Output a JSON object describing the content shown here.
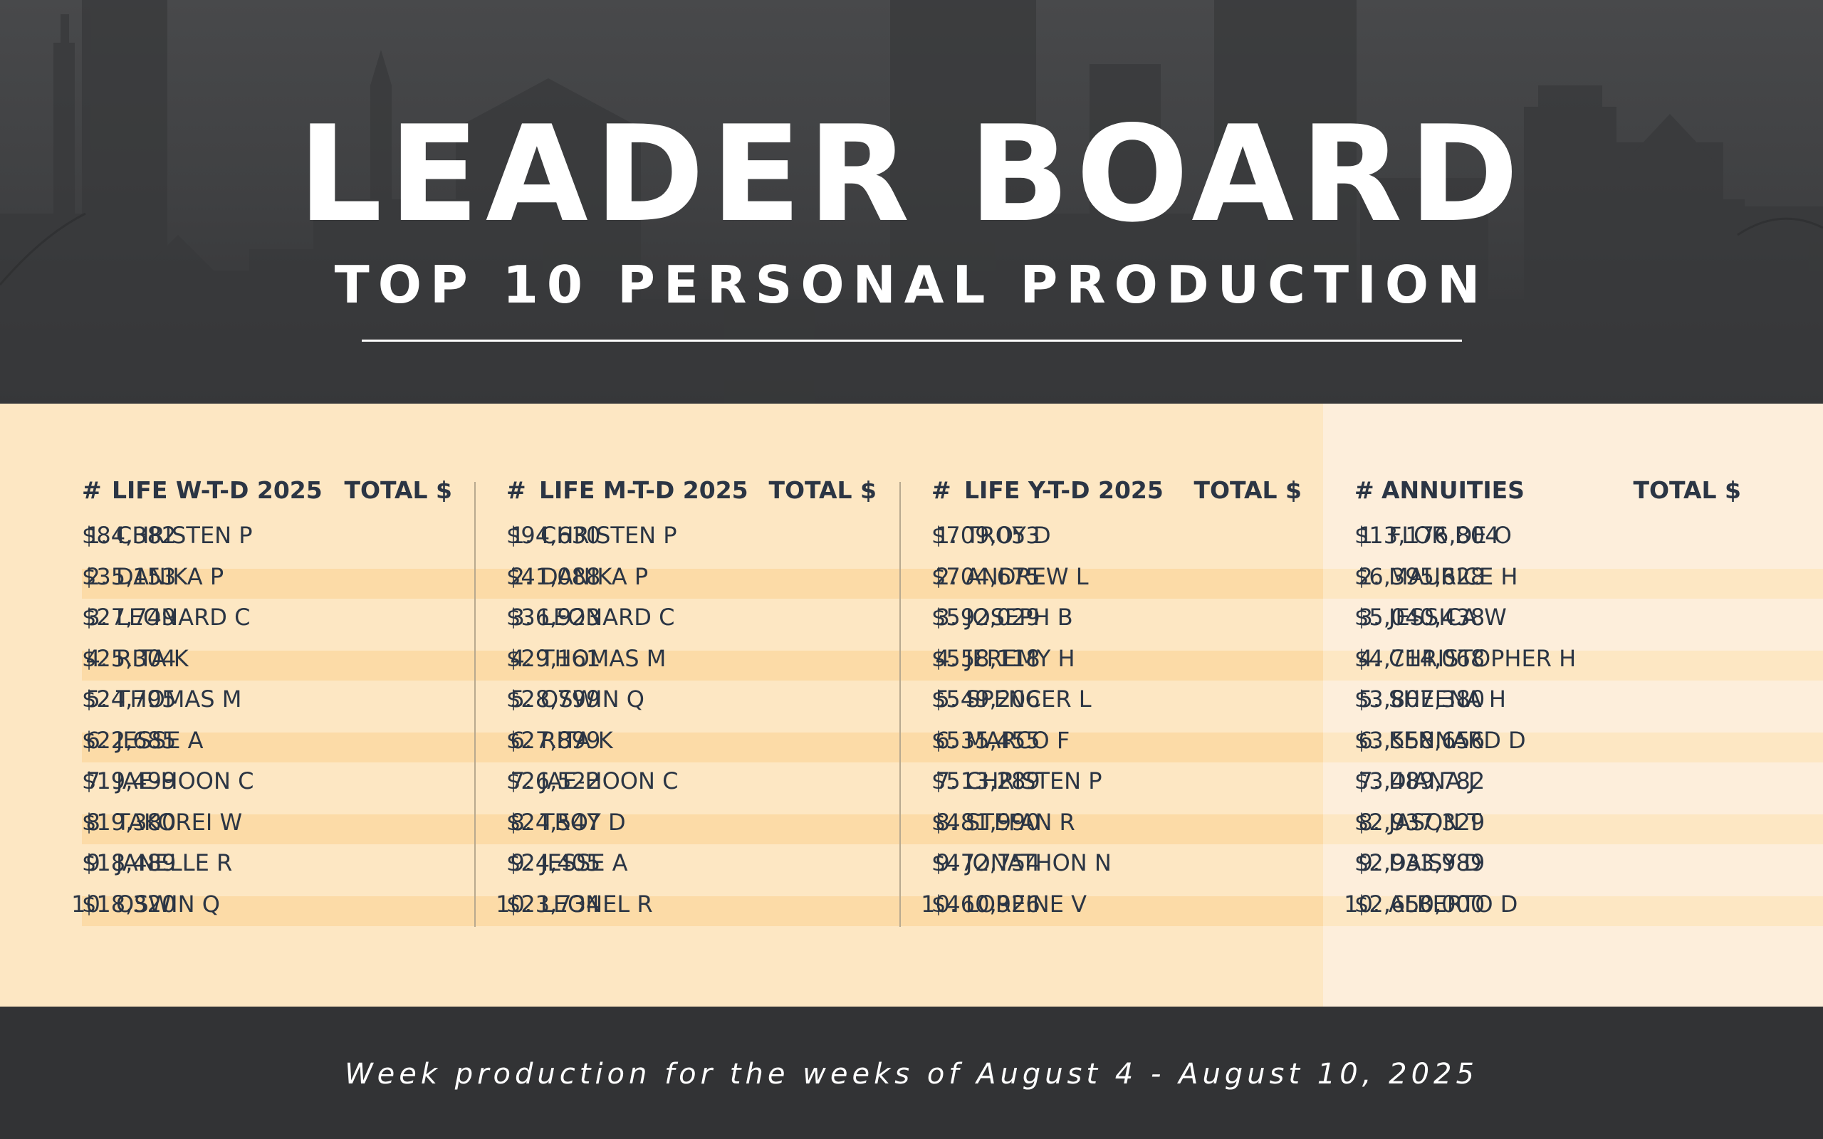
{
  "header": {
    "title": "LEADER BOARD",
    "subtitle": "TOP 10 PERSONAL PRODUCTION"
  },
  "columns": [
    {
      "hash": "#",
      "category": "LIFE W-T-D 2025",
      "total_label": "TOTAL $",
      "rows": [
        {
          "rank": "1.",
          "name": "CHRISTEN P",
          "amount": "$84,382"
        },
        {
          "rank": "2.",
          "name": "DANIKA P",
          "amount": "$35,153"
        },
        {
          "rank": "3.",
          "name": "LEONARD C",
          "amount": "$27,749"
        },
        {
          "rank": "4.",
          "name": "RITA K",
          "amount": "$25,304"
        },
        {
          "rank": "5.",
          "name": "THOMAS M",
          "amount": "$24,795"
        },
        {
          "rank": "6.",
          "name": "JESSE A",
          "amount": "$22,685"
        },
        {
          "rank": "7.",
          "name": "JAE-HOON C",
          "amount": "$19,499"
        },
        {
          "rank": "8.",
          "name": "TAKOREI W",
          "amount": "$19,380"
        },
        {
          "rank": "9.",
          "name": "JANELLE R",
          "amount": "$18,489"
        },
        {
          "rank": "10.",
          "name": "OSWIN Q",
          "amount": "$18,320"
        }
      ]
    },
    {
      "hash": "#",
      "category": "LIFE M-T-D 2025",
      "total_label": "TOTAL $",
      "rows": [
        {
          "rank": "1.",
          "name": "CHRISTEN P",
          "amount": "$94,630"
        },
        {
          "rank": "2.",
          "name": "DANIKA P",
          "amount": "$41,088"
        },
        {
          "rank": "3.",
          "name": "LEONARD C",
          "amount": "$36,923"
        },
        {
          "rank": "4.",
          "name": "THOMAS M",
          "amount": "$29,161"
        },
        {
          "rank": "5.",
          "name": "OSWIN Q",
          "amount": "$28,799"
        },
        {
          "rank": "6.",
          "name": "RITA K",
          "amount": "$27,899"
        },
        {
          "rank": "7.",
          "name": "JAE-HOON C",
          "amount": "$26,522"
        },
        {
          "rank": "8.",
          "name": "TROY D",
          "amount": "$24,547"
        },
        {
          "rank": "9.",
          "name": "JESSE A",
          "amount": "$24,405"
        },
        {
          "rank": "10.",
          "name": "LEONEL R",
          "amount": "$23,734"
        }
      ]
    },
    {
      "hash": "#",
      "category": "LIFE Y-T-D 2025",
      "total_label": "TOTAL $",
      "rows": [
        {
          "rank": "1.",
          "name": "TROY D",
          "amount": "$709,053"
        },
        {
          "rank": "2.",
          "name": "ANDREW L",
          "amount": "$704,675"
        },
        {
          "rank": "3.",
          "name": "JOSEPH B",
          "amount": "$592,029"
        },
        {
          "rank": "4.",
          "name": "JEREMY H",
          "amount": "$558,118"
        },
        {
          "rank": "5.",
          "name": "SPENCER L",
          "amount": "$549,206"
        },
        {
          "rank": "6.",
          "name": "MARCO F",
          "amount": "$535,455"
        },
        {
          "rank": "7.",
          "name": "CHRISTEN P",
          "amount": "$513,289"
        },
        {
          "rank": "8.",
          "name": "STEFAN R",
          "amount": "$481,990"
        },
        {
          "rank": "9.",
          "name": "JONATHON N",
          "amount": "$472,754"
        },
        {
          "rank": "10.",
          "name": "LOREINE V",
          "amount": "$460,926"
        }
      ]
    },
    {
      "hash": "#",
      "category": "ANNUITIES",
      "total_label": "TOTAL $",
      "rows": [
        {
          "rank": "1.",
          "name": "FLOR DE O",
          "amount": "$13,176,804"
        },
        {
          "rank": "2.",
          "name": "MAURICE H",
          "amount": "$6,395,628"
        },
        {
          "rank": "3.",
          "name": "JESSICA W",
          "amount": "$5,040,438"
        },
        {
          "rank": "4.",
          "name": "CHRISTOPHER H",
          "amount": "$4,714,068"
        },
        {
          "rank": "5.",
          "name": "SHEENA H",
          "amount": "$3,807,380"
        },
        {
          "rank": "6.",
          "name": "KENNARD D",
          "amount": "$3,558,656"
        },
        {
          "rank": "7.",
          "name": "DIANA J",
          "amount": "$3,489,782"
        },
        {
          "rank": "8.",
          "name": "JASON T",
          "amount": "$2,937,329"
        },
        {
          "rank": "9.",
          "name": "DAISY D",
          "amount": "$2,933,989"
        },
        {
          "rank": "10.",
          "name": "ALBERTO D",
          "amount": "$2,650,000"
        }
      ]
    }
  ],
  "footer": {
    "note": "Week production for the weeks of August 4 - August 10, 2025"
  },
  "colors": {
    "header_dark": "#3a3b3d",
    "board_cream": "#fde7c3",
    "board_light": "#fdeedb",
    "stripe": "#fcdba7",
    "text_navy": "#2b3544"
  }
}
